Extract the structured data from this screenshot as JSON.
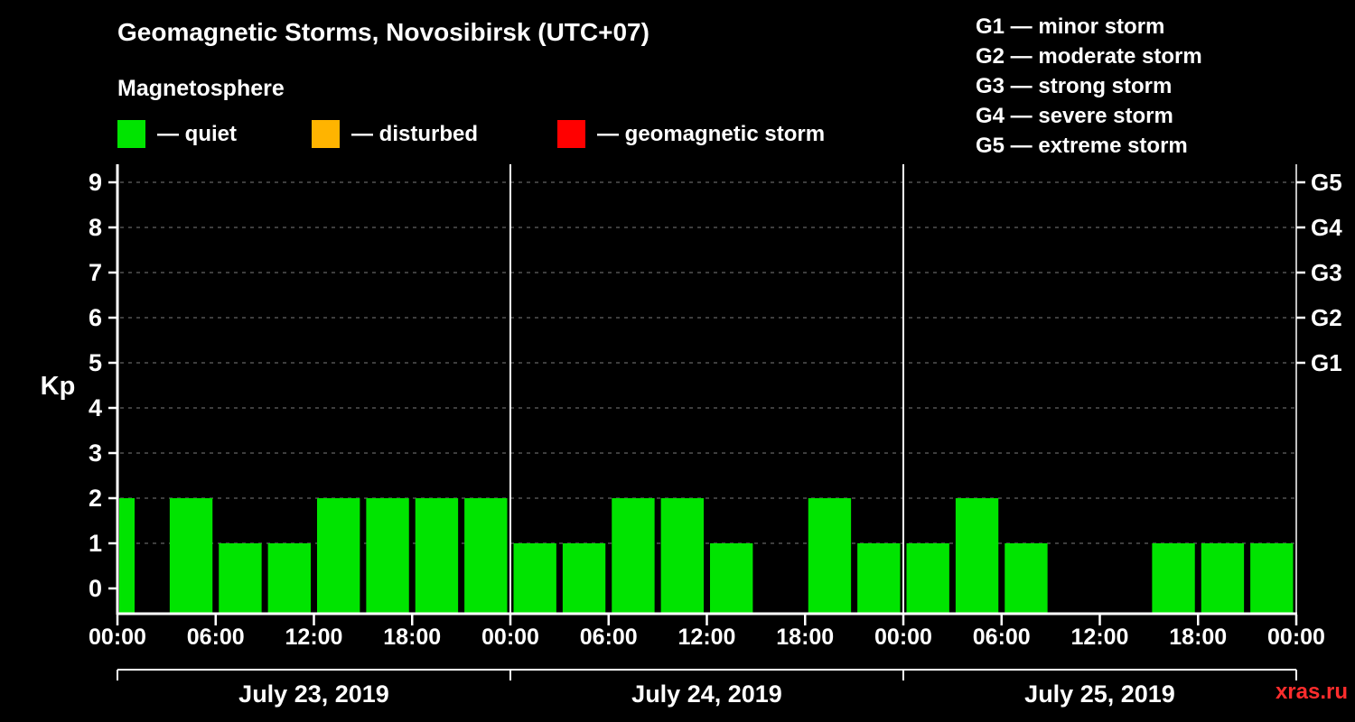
{
  "legend": {
    "items": [
      {
        "id": "quiet",
        "label": "— quiet",
        "color": "#00e400"
      },
      {
        "id": "disturbed",
        "label": "— disturbed",
        "color": "#ffb400"
      },
      {
        "id": "storm",
        "label": "— geomagnetic storm",
        "color": "#ff0000"
      }
    ]
  },
  "storm_scale": {
    "items": [
      "G1 — minor storm",
      "G2 — moderate storm",
      "G3 — strong storm",
      "G4 — severe storm",
      "G5 — extreme storm"
    ]
  },
  "watermark": "xras.ru",
  "chart_data": {
    "type": "bar",
    "title": "Geomagnetic Storms, Novosibirsk (UTC+07)",
    "subtitle": "Magnetosphere",
    "ylabel": "Kp",
    "ylim": [
      0,
      9.5
    ],
    "yticks": [
      0,
      1,
      2,
      3,
      4,
      5,
      6,
      7,
      8,
      9
    ],
    "grid": "dashed horizontal at each Kp level",
    "bar_color": "#00e400",
    "interval_hours": 3,
    "x_tick_labels": [
      "00:00",
      "06:00",
      "12:00",
      "18:00",
      "00:00",
      "06:00",
      "12:00",
      "18:00",
      "00:00",
      "06:00",
      "12:00",
      "18:00",
      "00:00"
    ],
    "right_axis_labels": [
      {
        "level": 5,
        "label": "G1"
      },
      {
        "level": 6,
        "label": "G2"
      },
      {
        "level": 7,
        "label": "G3"
      },
      {
        "level": 8,
        "label": "G4"
      },
      {
        "level": 9,
        "label": "G5"
      }
    ],
    "days": [
      {
        "date": "July 23, 2019",
        "kp": [
          2,
          2,
          1,
          1,
          2,
          2,
          2,
          2
        ]
      },
      {
        "date": "July 24, 2019",
        "kp": [
          1,
          1,
          2,
          2,
          1,
          0,
          2,
          1
        ]
      },
      {
        "date": "July 25, 2019",
        "kp": [
          1,
          2,
          1,
          0,
          0,
          1,
          1,
          1
        ]
      }
    ]
  }
}
